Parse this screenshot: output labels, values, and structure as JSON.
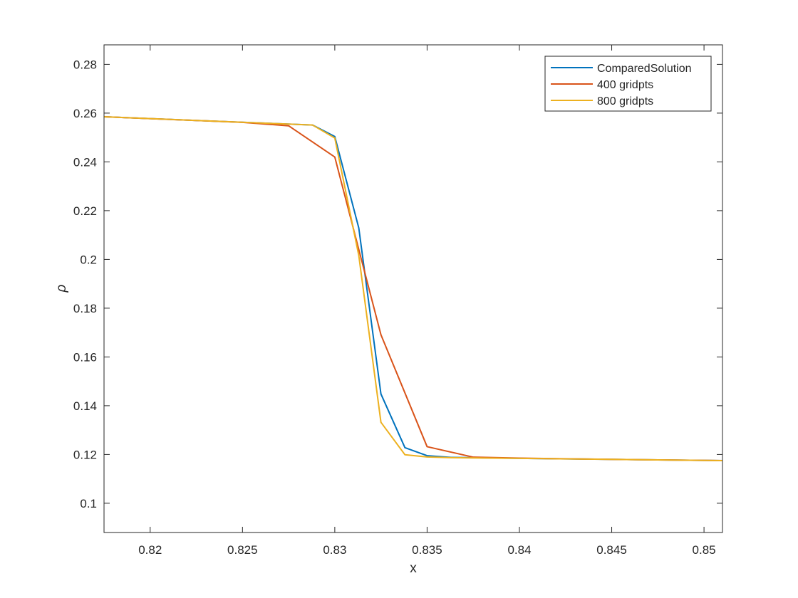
{
  "chart_data": {
    "type": "line",
    "title": "",
    "xlabel": "x",
    "ylabel": "ρ",
    "xlim": [
      0.8175,
      0.851
    ],
    "ylim": [
      0.088,
      0.288
    ],
    "xticks": [
      0.82,
      0.825,
      0.83,
      0.835,
      0.84,
      0.845,
      0.85
    ],
    "xtick_labels": [
      "0.82",
      "0.825",
      "0.83",
      "0.835",
      "0.84",
      "0.845",
      "0.85"
    ],
    "yticks": [
      0.1,
      0.12,
      0.14,
      0.16,
      0.18,
      0.2,
      0.22,
      0.24,
      0.26,
      0.28
    ],
    "ytick_labels": [
      "0.1",
      "0.12",
      "0.14",
      "0.16",
      "0.18",
      "0.2",
      "0.22",
      "0.24",
      "0.26",
      "0.28"
    ],
    "grid": false,
    "legend_position": "top-right",
    "series": [
      {
        "name": "ComparedSolution",
        "color": "#0072BD",
        "x": [
          0.8175,
          0.8288,
          0.83,
          0.8313,
          0.8325,
          0.8338,
          0.835,
          0.8363,
          0.8375,
          0.84,
          0.845,
          0.851
        ],
        "y": [
          0.2585,
          0.2551,
          0.2504,
          0.2129,
          0.1448,
          0.1228,
          0.1195,
          0.1188,
          0.1187,
          0.1184,
          0.118,
          0.1175
        ]
      },
      {
        "name": "400 gridpts",
        "color": "#D95319",
        "x": [
          0.8175,
          0.825,
          0.8275,
          0.83,
          0.8325,
          0.835,
          0.8375,
          0.84,
          0.845,
          0.851
        ],
        "y": [
          0.2585,
          0.2562,
          0.2548,
          0.242,
          0.1691,
          0.1232,
          0.1189,
          0.1185,
          0.118,
          0.1175
        ]
      },
      {
        "name": "800 gridpts",
        "color": "#EDB120",
        "x": [
          0.8175,
          0.8288,
          0.83,
          0.8313,
          0.8325,
          0.8338,
          0.835,
          0.8363,
          0.8375,
          0.84,
          0.845,
          0.851
        ],
        "y": [
          0.2585,
          0.2551,
          0.2498,
          0.2016,
          0.1332,
          0.1199,
          0.119,
          0.1187,
          0.1186,
          0.1184,
          0.118,
          0.1175
        ]
      }
    ]
  }
}
